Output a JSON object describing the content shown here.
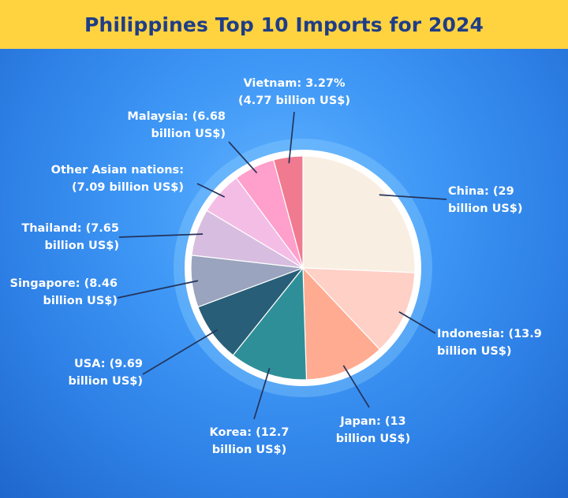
{
  "header": {
    "title": "Philippines Top 10 Imports for 2024"
  },
  "chart_data": {
    "type": "pie",
    "title": "Philippines Top 10 Imports for 2024",
    "unit": "billion US$",
    "slices": [
      {
        "name": "China",
        "value": 29,
        "color": "#f8efe2",
        "label_lines": [
          "China: (29",
          "billion US$)"
        ]
      },
      {
        "name": "Indonesia",
        "value": 13.9,
        "color": "#ffd0c6",
        "label_lines": [
          "Indonesia: (13.9",
          "billion US$)"
        ]
      },
      {
        "name": "Japan",
        "value": 13,
        "color": "#ffab91",
        "label_lines": [
          "Japan: (13",
          "billion US$)"
        ]
      },
      {
        "name": "Korea",
        "value": 12.7,
        "color": "#2f8f98",
        "label_lines": [
          "Korea: (12.7",
          "billion US$)"
        ]
      },
      {
        "name": "USA",
        "value": 9.69,
        "color": "#285e77",
        "label_lines": [
          "USA: (9.69",
          "billion US$)"
        ]
      },
      {
        "name": "Singapore",
        "value": 8.46,
        "color": "#9aa4be",
        "label_lines": [
          "Singapore: (8.46",
          "billion US$)"
        ]
      },
      {
        "name": "Thailand",
        "value": 7.65,
        "color": "#d7bddf",
        "label_lines": [
          "Thailand: (7.65",
          "billion US$)"
        ]
      },
      {
        "name": "Other Asian nations",
        "value": 7.09,
        "color": "#f4bde6",
        "label_lines": [
          "Other Asian nations:",
          "(7.09 billion US$)"
        ]
      },
      {
        "name": "Malaysia",
        "value": 6.68,
        "color": "#ff9fcb",
        "label_lines": [
          "Malaysia: (6.68",
          "billion US$)"
        ]
      },
      {
        "name": "Vietnam",
        "value": 4.77,
        "percent": "3.27%",
        "color": "#f07a8f",
        "label_lines": [
          "Vietnam: 3.27%",
          "(4.77 billion US$)"
        ]
      }
    ]
  }
}
